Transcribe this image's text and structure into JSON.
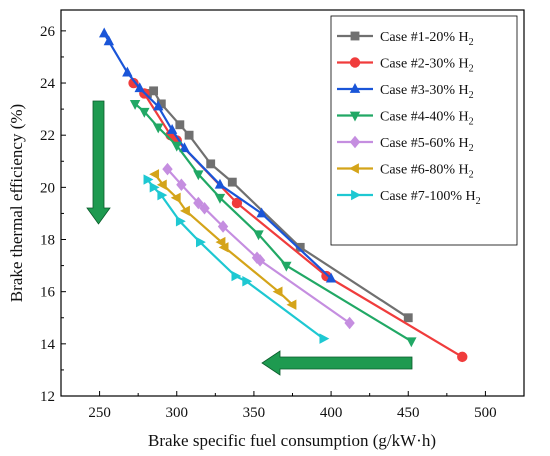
{
  "chart_data": {
    "type": "line",
    "xlabel": "Brake specific fuel consumption (g/kW·h)",
    "ylabel": "Brake thermal efficiency (%)",
    "xlim": [
      225,
      525
    ],
    "ylim": [
      12,
      26.8
    ],
    "xticks": [
      250,
      300,
      350,
      400,
      450,
      500
    ],
    "yticks": [
      12,
      14,
      16,
      18,
      20,
      22,
      24,
      26
    ],
    "grid": false,
    "legend_position": "top-right",
    "arrows": [
      {
        "direction": "down",
        "color": "#1e9a50"
      },
      {
        "direction": "left",
        "color": "#1e9a50"
      }
    ],
    "series": [
      {
        "name": "Case #1-20% H",
        "sub": "2",
        "color": "#707070",
        "marker": "square",
        "x": [
          281,
          285,
          290,
          302,
          308,
          322,
          336,
          380,
          450
        ],
        "y": [
          23.6,
          23.7,
          23.2,
          22.4,
          22.0,
          20.9,
          20.2,
          17.7,
          15.0
        ]
      },
      {
        "name": "Case #2-30% H",
        "sub": "2",
        "color": "#f03c3c",
        "marker": "circle",
        "x": [
          272,
          279,
          296,
          300,
          339,
          397,
          485
        ],
        "y": [
          24.0,
          23.6,
          22.0,
          21.8,
          19.4,
          16.6,
          13.5
        ]
      },
      {
        "name": "Case #3-30% H",
        "sub": "2",
        "color": "#1a55d8",
        "marker": "triangle-up",
        "x": [
          253,
          256,
          268,
          276,
          288,
          297,
          305,
          328,
          355,
          400
        ],
        "y": [
          25.9,
          25.6,
          24.4,
          23.8,
          23.1,
          22.2,
          21.5,
          20.1,
          19.0,
          16.5
        ]
      },
      {
        "name": "Case #4-40% H",
        "sub": "2",
        "color": "#21a865",
        "marker": "triangle-down",
        "x": [
          273,
          279,
          288,
          300,
          314,
          328,
          353,
          371,
          452
        ],
        "y": [
          23.2,
          22.9,
          22.3,
          21.6,
          20.5,
          19.6,
          18.2,
          17.0,
          14.1
        ]
      },
      {
        "name": "Case #5-60% H",
        "sub": "2",
        "color": "#c58ee0",
        "marker": "diamond",
        "x": [
          294,
          303,
          314,
          318,
          330,
          352,
          354,
          412
        ],
        "y": [
          20.7,
          20.1,
          19.4,
          19.2,
          18.5,
          17.3,
          17.2,
          14.8
        ]
      },
      {
        "name": "Case #6-80% H",
        "sub": "2",
        "color": "#d4a419",
        "marker": "triangle-left",
        "x": [
          286,
          291,
          300,
          306,
          329,
          331,
          366,
          375
        ],
        "y": [
          20.5,
          20.1,
          19.6,
          19.1,
          17.9,
          17.7,
          16.0,
          15.5
        ]
      },
      {
        "name": "Case #7-100% H",
        "sub": "2",
        "color": "#1ec8d2",
        "marker": "triangle-right",
        "x": [
          281,
          285,
          290,
          302,
          315,
          338,
          345,
          395
        ],
        "y": [
          20.3,
          20.0,
          19.7,
          18.7,
          17.9,
          16.6,
          16.4,
          14.2
        ]
      }
    ]
  }
}
